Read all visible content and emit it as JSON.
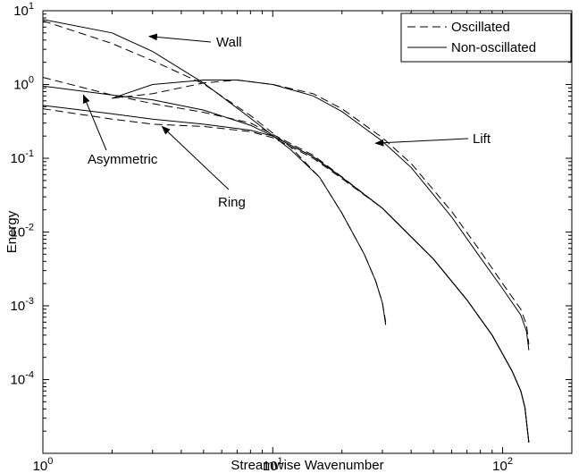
{
  "chart_data": {
    "type": "line",
    "xscale": "log",
    "yscale": "log",
    "xlim": [
      1,
      200
    ],
    "ylim": [
      1e-05,
      10
    ],
    "xlabel": "Streamwise Wavenumber",
    "ylabel": "Energy",
    "grid": false,
    "legend_position": "top-right",
    "legend": [
      {
        "label": "Oscillated",
        "style": "dashed"
      },
      {
        "label": "Non-oscillated",
        "style": "solid"
      }
    ],
    "x_ticks": [
      {
        "value": 1,
        "base": "10",
        "exp": "0"
      },
      {
        "value": 10,
        "base": "10",
        "exp": "1"
      },
      {
        "value": 100,
        "base": "10",
        "exp": "2"
      }
    ],
    "y_ticks": [
      {
        "value": 10,
        "base": "10",
        "exp": "1"
      },
      {
        "value": 1,
        "base": "10",
        "exp": "0"
      },
      {
        "value": 0.1,
        "base": "10",
        "exp": "-1"
      },
      {
        "value": 0.01,
        "base": "10",
        "exp": "-2"
      },
      {
        "value": 0.001,
        "base": "10",
        "exp": "-3"
      },
      {
        "value": 0.0001,
        "base": "10",
        "exp": "-4"
      }
    ],
    "series": [
      {
        "group": "Wall",
        "style": "solid",
        "points": [
          [
            1,
            7.6
          ],
          [
            2,
            5.0
          ],
          [
            3,
            2.8
          ],
          [
            5,
            1.05
          ],
          [
            8,
            0.35
          ],
          [
            12,
            0.13
          ],
          [
            16,
            0.055
          ],
          [
            20,
            0.018
          ],
          [
            25,
            0.005
          ],
          [
            28,
            0.0022
          ],
          [
            30,
            0.0011
          ],
          [
            31,
            0.00055
          ]
        ]
      },
      {
        "group": "Wall",
        "style": "dashed",
        "points": [
          [
            1,
            7.3
          ],
          [
            2,
            3.6
          ],
          [
            3,
            2.1
          ],
          [
            5,
            1.02
          ],
          [
            8,
            0.38
          ],
          [
            12,
            0.14
          ],
          [
            16,
            0.055
          ],
          [
            20,
            0.018
          ],
          [
            25,
            0.005
          ],
          [
            28,
            0.0022
          ],
          [
            30,
            0.0011
          ],
          [
            31,
            0.0006
          ]
        ]
      },
      {
        "group": "Lift",
        "style": "solid",
        "points": [
          [
            2,
            0.65
          ],
          [
            3,
            1.0
          ],
          [
            5,
            1.15
          ],
          [
            7,
            1.15
          ],
          [
            10,
            1.0
          ],
          [
            15,
            0.7
          ],
          [
            20,
            0.43
          ],
          [
            30,
            0.17
          ],
          [
            40,
            0.075
          ],
          [
            60,
            0.016
          ],
          [
            80,
            0.0045
          ],
          [
            100,
            0.0017
          ],
          [
            120,
            0.00075
          ],
          [
            127,
            0.00045
          ],
          [
            130,
            0.00025
          ]
        ]
      },
      {
        "group": "Lift",
        "style": "dashed",
        "points": [
          [
            2,
            0.65
          ],
          [
            3,
            0.75
          ],
          [
            5,
            1.05
          ],
          [
            7,
            1.15
          ],
          [
            10,
            1.0
          ],
          [
            15,
            0.75
          ],
          [
            20,
            0.47
          ],
          [
            30,
            0.19
          ],
          [
            40,
            0.085
          ],
          [
            60,
            0.019
          ],
          [
            80,
            0.0055
          ],
          [
            100,
            0.002
          ],
          [
            120,
            0.0009
          ],
          [
            127,
            0.00055
          ],
          [
            130,
            0.0003
          ]
        ]
      },
      {
        "group": "Asymmetric",
        "style": "solid",
        "points": [
          [
            1,
            0.95
          ],
          [
            2,
            0.72
          ],
          [
            3,
            0.62
          ],
          [
            5,
            0.45
          ],
          [
            8,
            0.28
          ],
          [
            10,
            0.2
          ],
          [
            15,
            0.105
          ],
          [
            20,
            0.055
          ],
          [
            30,
            0.021
          ],
          [
            50,
            0.0043
          ],
          [
            70,
            0.0012
          ],
          [
            90,
            0.0004
          ],
          [
            110,
            0.00013
          ],
          [
            120,
            7e-05
          ],
          [
            125,
            4.2e-05
          ],
          [
            130,
            1.4e-05
          ]
        ]
      },
      {
        "group": "Asymmetric",
        "style": "dashed",
        "points": [
          [
            1,
            1.25
          ],
          [
            2,
            0.72
          ],
          [
            3,
            0.55
          ],
          [
            5,
            0.42
          ],
          [
            8,
            0.3
          ],
          [
            10,
            0.21
          ],
          [
            15,
            0.11
          ],
          [
            20,
            0.056
          ],
          [
            30,
            0.021
          ],
          [
            50,
            0.0043
          ],
          [
            70,
            0.0012
          ],
          [
            90,
            0.0004
          ],
          [
            110,
            0.00013
          ],
          [
            120,
            7e-05
          ],
          [
            125,
            4.2e-05
          ],
          [
            130,
            1.4e-05
          ]
        ]
      },
      {
        "group": "Ring",
        "style": "solid",
        "points": [
          [
            1,
            0.52
          ],
          [
            2,
            0.4
          ],
          [
            3,
            0.34
          ],
          [
            5,
            0.29
          ],
          [
            8,
            0.24
          ],
          [
            10,
            0.2
          ],
          [
            15,
            0.105
          ],
          [
            20,
            0.055
          ],
          [
            30,
            0.021
          ],
          [
            50,
            0.0043
          ],
          [
            70,
            0.0012
          ],
          [
            90,
            0.0004
          ],
          [
            110,
            0.00013
          ],
          [
            120,
            7e-05
          ],
          [
            125,
            4.2e-05
          ],
          [
            130,
            1.4e-05
          ]
        ]
      },
      {
        "group": "Ring",
        "style": "dashed",
        "points": [
          [
            1,
            0.47
          ],
          [
            2,
            0.34
          ],
          [
            3,
            0.29
          ],
          [
            5,
            0.27
          ],
          [
            8,
            0.23
          ],
          [
            10,
            0.19
          ],
          [
            15,
            0.1
          ],
          [
            20,
            0.053
          ],
          [
            30,
            0.021
          ],
          [
            50,
            0.0043
          ],
          [
            70,
            0.0012
          ],
          [
            90,
            0.0004
          ],
          [
            110,
            0.00013
          ],
          [
            120,
            7e-05
          ],
          [
            125,
            4.2e-05
          ],
          [
            130,
            1.4e-05
          ]
        ]
      }
    ],
    "annotations": [
      {
        "text": "Wall",
        "arrow_to": [
          2.9,
          4.5
        ]
      },
      {
        "text": "Lift",
        "arrow_to": [
          28,
          0.16
        ]
      },
      {
        "text": "Asymmetric",
        "arrow_to": [
          1.5,
          0.72
        ]
      },
      {
        "text": "Ring",
        "arrow_to": [
          3.3,
          0.27
        ]
      }
    ]
  }
}
